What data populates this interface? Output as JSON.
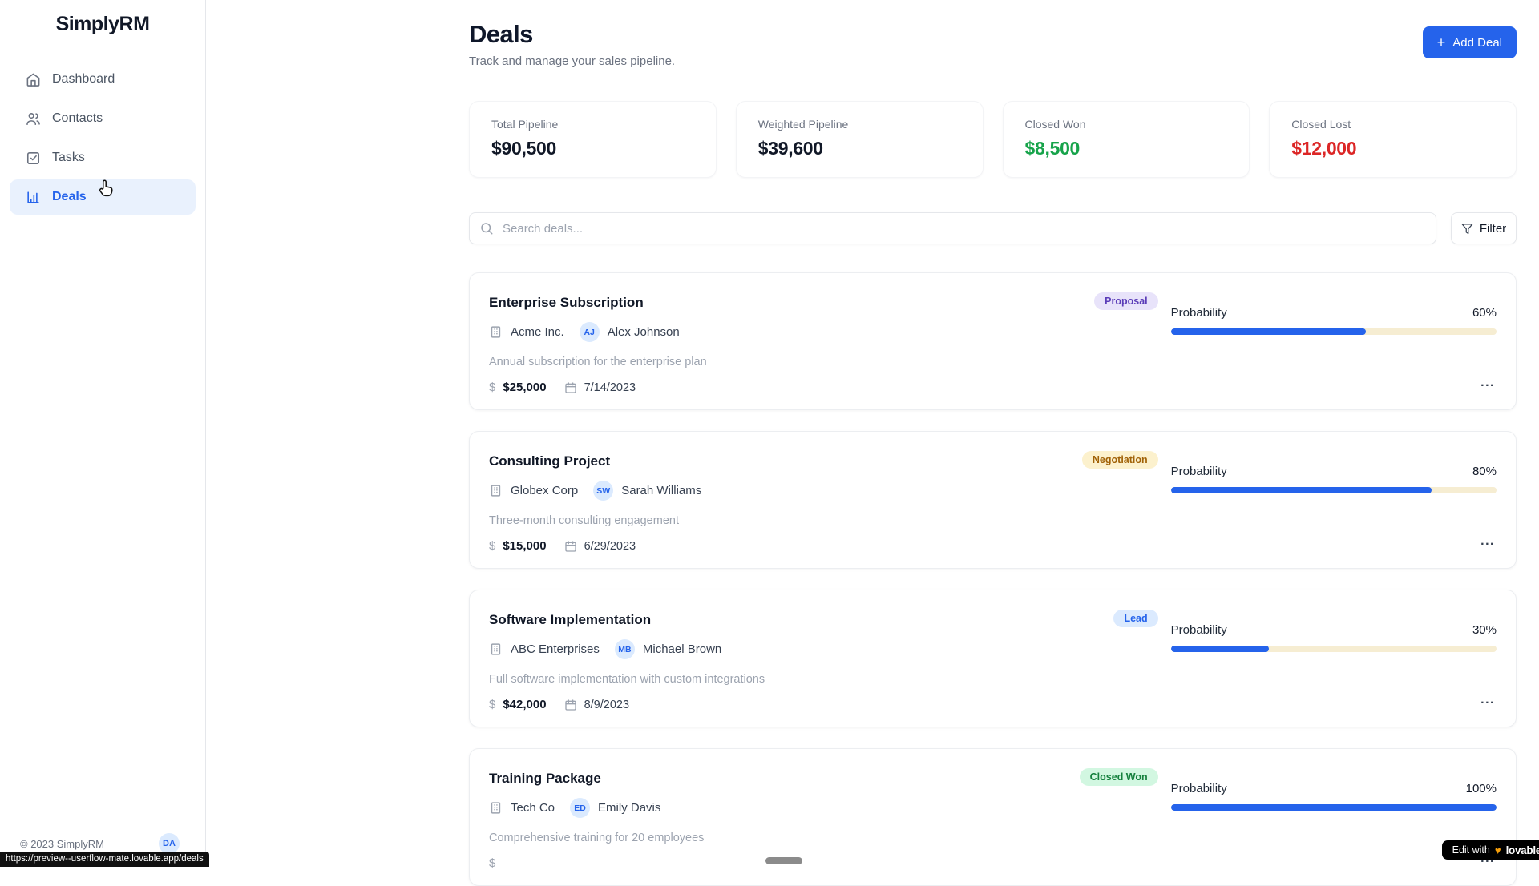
{
  "app": {
    "name": "SimplyRM",
    "copyright": "© 2023 SimplyRM",
    "user_initials": "DA",
    "url_tooltip": "https://preview--userflow-mate.lovable.app/deals",
    "edit_badge": {
      "prefix": "Edit with",
      "heart": "♥",
      "brand": "lovable"
    }
  },
  "sidebar": {
    "items": [
      {
        "label": "Dashboard",
        "icon": "home-icon",
        "active": false
      },
      {
        "label": "Contacts",
        "icon": "users-icon",
        "active": false
      },
      {
        "label": "Tasks",
        "icon": "check-square-icon",
        "active": false
      },
      {
        "label": "Deals",
        "icon": "bar-chart-icon",
        "active": true
      }
    ]
  },
  "header": {
    "title": "Deals",
    "subtitle": "Track and manage your sales pipeline.",
    "add_button_icon": "+",
    "add_button_label": "Add Deal"
  },
  "stats": [
    {
      "label": "Total Pipeline",
      "value": "$90,500",
      "color": "#111827"
    },
    {
      "label": "Weighted Pipeline",
      "value": "$39,600",
      "color": "#111827"
    },
    {
      "label": "Closed Won",
      "value": "$8,500",
      "color": "#16a34a"
    },
    {
      "label": "Closed Lost",
      "value": "$12,000",
      "color": "#dc2626"
    }
  ],
  "search": {
    "placeholder": "Search deals...",
    "filter_label": "Filter"
  },
  "probability_label": "Probability",
  "more_label": "...",
  "deals": [
    {
      "title": "Enterprise Subscription",
      "stage": "Proposal",
      "stage_bg": "#e8e3fa",
      "stage_color": "#5b3db8",
      "company": "Acme Inc.",
      "initials": "AJ",
      "contact": "Alex Johnson",
      "description": "Annual subscription for the enterprise plan",
      "currency": "$",
      "value": "$25,000",
      "date": "7/14/2023",
      "probability": 60,
      "probability_pct": "60%"
    },
    {
      "title": "Consulting Project",
      "stage": "Negotiation",
      "stage_bg": "#fcf1cd",
      "stage_color": "#a16207",
      "company": "Globex Corp",
      "initials": "SW",
      "contact": "Sarah Williams",
      "description": "Three-month consulting engagement",
      "currency": "$",
      "value": "$15,000",
      "date": "6/29/2023",
      "probability": 80,
      "probability_pct": "80%"
    },
    {
      "title": "Software Implementation",
      "stage": "Lead",
      "stage_bg": "#dbeafe",
      "stage_color": "#2563eb",
      "company": "ABC Enterprises",
      "initials": "MB",
      "contact": "Michael Brown",
      "description": "Full software implementation with custom integrations",
      "currency": "$",
      "value": "$42,000",
      "date": "8/9/2023",
      "probability": 30,
      "probability_pct": "30%"
    },
    {
      "title": "Training Package",
      "stage": "Closed Won",
      "stage_bg": "#d2f7e1",
      "stage_color": "#15803d",
      "company": "Tech Co",
      "initials": "ED",
      "contact": "Emily Davis",
      "description": "Comprehensive training for 20 employees",
      "currency": "$",
      "value": "",
      "date": "",
      "probability": 100,
      "probability_pct": "100%"
    }
  ]
}
